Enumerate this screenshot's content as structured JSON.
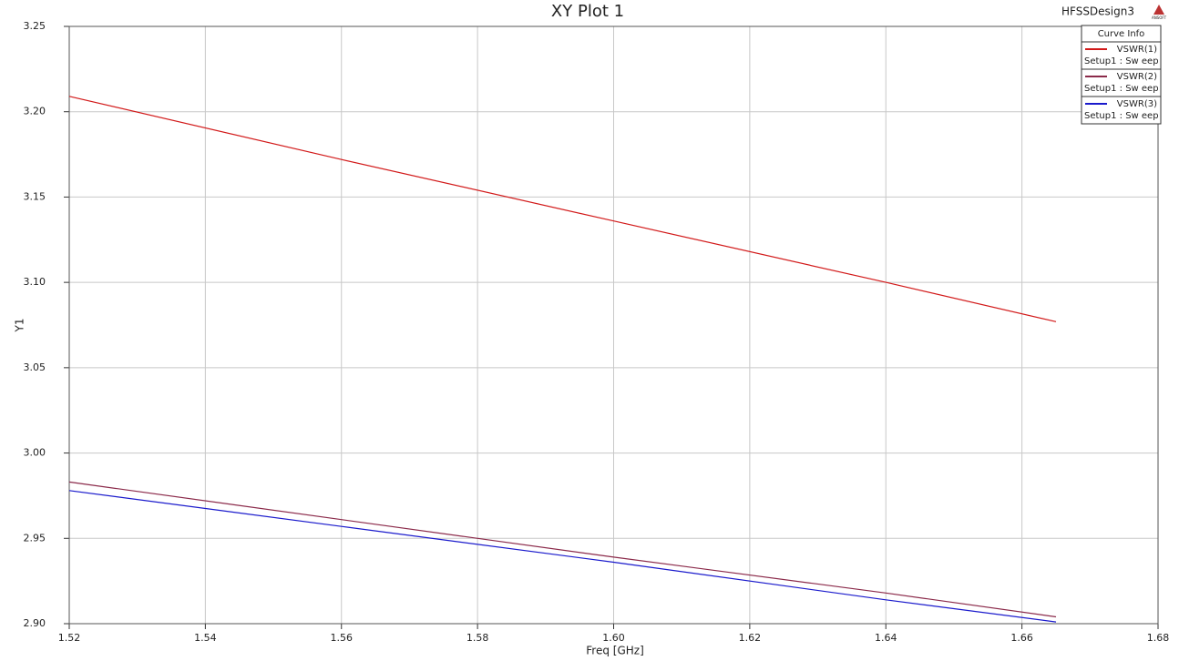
{
  "chart_data": {
    "type": "line",
    "title": "XY Plot 1",
    "design": "HFSSDesign3",
    "logo": "ANSOFT",
    "xlabel": "Freq [GHz]",
    "ylabel": "Y1",
    "legend_title": "Curve Info",
    "legend_position": "top-right",
    "grid": true,
    "x": [
      1.52,
      1.56,
      1.6,
      1.64,
      1.665
    ],
    "series": [
      {
        "name": "VSWR(1)",
        "source": "Setup1 : Sw eep",
        "color": "#d21a1a",
        "values": [
          3.209,
          3.172,
          3.136,
          3.1,
          3.077
        ]
      },
      {
        "name": "VSWR(2)",
        "source": "Setup1 : Sw eep",
        "color": "#8b2a4a",
        "values": [
          2.983,
          2.961,
          2.939,
          2.918,
          2.904
        ]
      },
      {
        "name": "VSWR(3)",
        "source": "Setup1 : Sw eep",
        "color": "#1a1acc",
        "values": [
          2.978,
          2.957,
          2.936,
          2.914,
          2.901
        ]
      }
    ],
    "xlim": [
      1.52,
      1.68
    ],
    "xticks": [
      1.52,
      1.54,
      1.56,
      1.58,
      {
        "value": 1.6,
        "label": "1.60"
      },
      1.62,
      1.64,
      1.66,
      1.68
    ],
    "ylim": [
      2.9,
      3.25
    ],
    "yticks": [
      {
        "value": 2.9,
        "label": "2.90"
      },
      2.95,
      {
        "value": 3.0,
        "label": "3.00"
      },
      3.05,
      {
        "value": 3.1,
        "label": "3.10"
      },
      3.15,
      {
        "value": 3.2,
        "label": "3.20"
      },
      3.25
    ]
  }
}
